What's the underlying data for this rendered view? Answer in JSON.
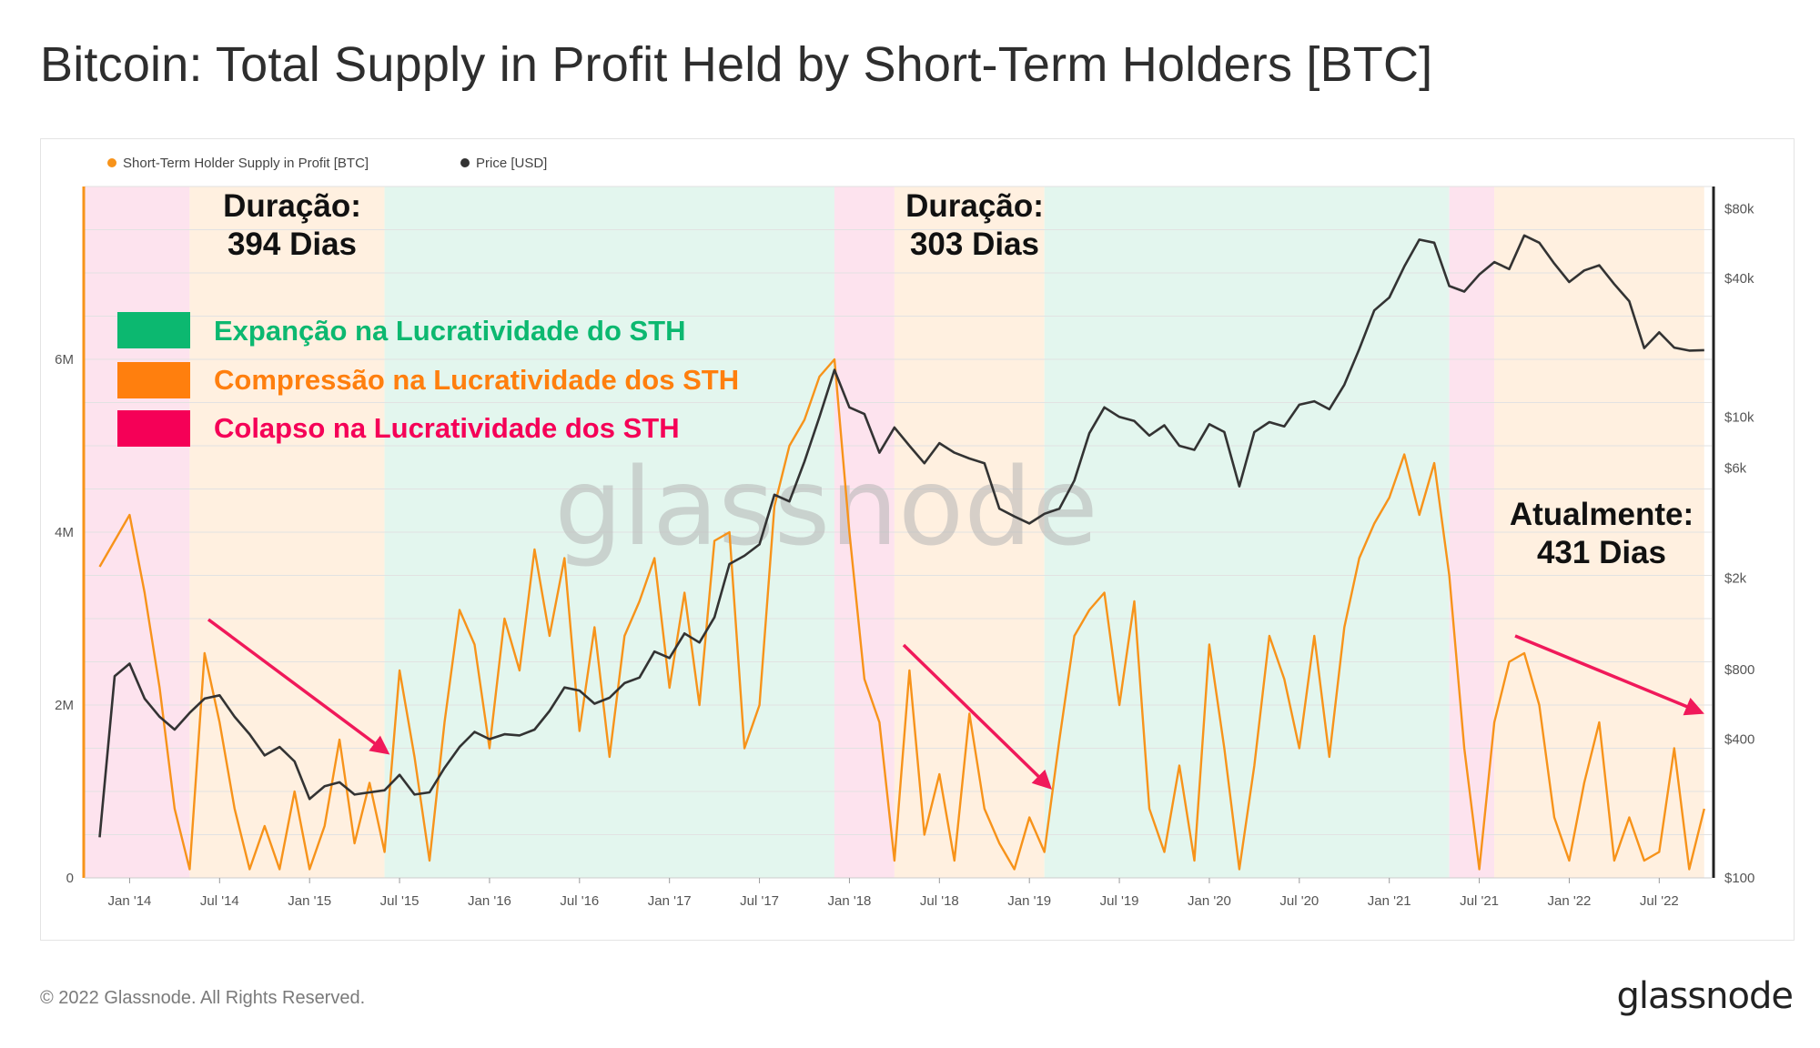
{
  "title": "Bitcoin: Total Supply in Profit Held by Short-Term Holders [BTC]",
  "footer": {
    "copyright": "© 2022 Glassnode. All Rights Reserved.",
    "logo": "glassnode"
  },
  "watermark": "glassnode",
  "legend": [
    {
      "label": "Short-Term Holder Supply in Profit [BTC]",
      "color": "#f7931a"
    },
    {
      "label": "Price [USD]",
      "color": "#333333"
    }
  ],
  "regimes_legend": [
    {
      "label": "Expanção na Lucratividade do STH",
      "color": "#0cb870"
    },
    {
      "label": "Compressão na Lucratividade dos STH",
      "color": "#ff7f0e"
    },
    {
      "label": "Colapso na Lucratividade dos STH",
      "color": "#f50057"
    }
  ],
  "annotations": [
    {
      "line1": "Duração:",
      "line2": "394 Dias"
    },
    {
      "line1": "Duração:",
      "line2": "303 Dias"
    },
    {
      "line1": "Atualmente:",
      "line2": "431 Dias"
    }
  ],
  "chart_data": {
    "type": "line",
    "x_ticks": [
      "Jan '14",
      "Jul '14",
      "Jan '15",
      "Jul '15",
      "Jan '16",
      "Jul '16",
      "Jan '17",
      "Jul '17",
      "Jan '18",
      "Jul '18",
      "Jan '19",
      "Jul '19",
      "Jan '20",
      "Jul '20",
      "Jan '21",
      "Jul '21",
      "Jan '22",
      "Jul '22"
    ],
    "x_range": [
      "2013-10",
      "2022-10"
    ],
    "y_left": {
      "ticks": [
        "0",
        "2M",
        "4M",
        "6M"
      ],
      "range": [
        0,
        8000000
      ],
      "unit": "BTC"
    },
    "y_right": {
      "ticks": [
        "$100",
        "$400",
        "$800",
        "$2k",
        "$6k",
        "$10k",
        "$40k",
        "$80k"
      ],
      "scale": "log",
      "range": [
        100,
        100000
      ]
    },
    "regimes": [
      {
        "type": "collapse",
        "from": "2013-10",
        "to": "2014-05"
      },
      {
        "type": "compression",
        "from": "2014-05",
        "to": "2015-06"
      },
      {
        "type": "expansion",
        "from": "2015-06",
        "to": "2017-12"
      },
      {
        "type": "collapse",
        "from": "2017-12",
        "to": "2018-04"
      },
      {
        "type": "compression",
        "from": "2018-04",
        "to": "2019-02"
      },
      {
        "type": "expansion",
        "from": "2019-02",
        "to": "2021-05"
      },
      {
        "type": "collapse",
        "from": "2021-05",
        "to": "2021-08"
      },
      {
        "type": "compression",
        "from": "2021-08",
        "to": "2022-10"
      }
    ],
    "series": [
      {
        "name": "Short-Term Holder Supply in Profit [BTC]",
        "color": "#f7931a",
        "axis": "left",
        "points": [
          [
            "2013-11",
            3600000
          ],
          [
            "2014-01",
            4200000
          ],
          [
            "2014-02",
            3300000
          ],
          [
            "2014-03",
            2200000
          ],
          [
            "2014-04",
            800000
          ],
          [
            "2014-05",
            100000
          ],
          [
            "2014-06",
            2600000
          ],
          [
            "2014-07",
            1800000
          ],
          [
            "2014-08",
            800000
          ],
          [
            "2014-09",
            100000
          ],
          [
            "2014-10",
            600000
          ],
          [
            "2014-11",
            100000
          ],
          [
            "2014-12",
            1000000
          ],
          [
            "2015-01",
            100000
          ],
          [
            "2015-02",
            600000
          ],
          [
            "2015-03",
            1600000
          ],
          [
            "2015-04",
            400000
          ],
          [
            "2015-05",
            1100000
          ],
          [
            "2015-06",
            300000
          ],
          [
            "2015-07",
            2400000
          ],
          [
            "2015-08",
            1400000
          ],
          [
            "2015-09",
            200000
          ],
          [
            "2015-10",
            1800000
          ],
          [
            "2015-11",
            3100000
          ],
          [
            "2015-12",
            2700000
          ],
          [
            "2016-01",
            1500000
          ],
          [
            "2016-02",
            3000000
          ],
          [
            "2016-03",
            2400000
          ],
          [
            "2016-04",
            3800000
          ],
          [
            "2016-05",
            2800000
          ],
          [
            "2016-06",
            3700000
          ],
          [
            "2016-07",
            1700000
          ],
          [
            "2016-08",
            2900000
          ],
          [
            "2016-09",
            1400000
          ],
          [
            "2016-10",
            2800000
          ],
          [
            "2016-11",
            3200000
          ],
          [
            "2016-12",
            3700000
          ],
          [
            "2017-01",
            2200000
          ],
          [
            "2017-02",
            3300000
          ],
          [
            "2017-03",
            2000000
          ],
          [
            "2017-04",
            3900000
          ],
          [
            "2017-05",
            4000000
          ],
          [
            "2017-06",
            1500000
          ],
          [
            "2017-07",
            2000000
          ],
          [
            "2017-08",
            4300000
          ],
          [
            "2017-09",
            5000000
          ],
          [
            "2017-10",
            5300000
          ],
          [
            "2017-11",
            5800000
          ],
          [
            "2017-12",
            6000000
          ],
          [
            "2018-01",
            4000000
          ],
          [
            "2018-02",
            2300000
          ],
          [
            "2018-03",
            1800000
          ],
          [
            "2018-04",
            200000
          ],
          [
            "2018-05",
            2400000
          ],
          [
            "2018-06",
            500000
          ],
          [
            "2018-07",
            1200000
          ],
          [
            "2018-08",
            200000
          ],
          [
            "2018-09",
            1900000
          ],
          [
            "2018-10",
            800000
          ],
          [
            "2018-11",
            400000
          ],
          [
            "2018-12",
            100000
          ],
          [
            "2019-01",
            700000
          ],
          [
            "2019-02",
            300000
          ],
          [
            "2019-03",
            1600000
          ],
          [
            "2019-04",
            2800000
          ],
          [
            "2019-05",
            3100000
          ],
          [
            "2019-06",
            3300000
          ],
          [
            "2019-07",
            2000000
          ],
          [
            "2019-08",
            3200000
          ],
          [
            "2019-09",
            800000
          ],
          [
            "2019-10",
            300000
          ],
          [
            "2019-11",
            1300000
          ],
          [
            "2019-12",
            200000
          ],
          [
            "2020-01",
            2700000
          ],
          [
            "2020-02",
            1500000
          ],
          [
            "2020-03",
            100000
          ],
          [
            "2020-04",
            1300000
          ],
          [
            "2020-05",
            2800000
          ],
          [
            "2020-06",
            2300000
          ],
          [
            "2020-07",
            1500000
          ],
          [
            "2020-08",
            2800000
          ],
          [
            "2020-09",
            1400000
          ],
          [
            "2020-10",
            2900000
          ],
          [
            "2020-11",
            3700000
          ],
          [
            "2020-12",
            4100000
          ],
          [
            "2021-01",
            4400000
          ],
          [
            "2021-02",
            4900000
          ],
          [
            "2021-03",
            4200000
          ],
          [
            "2021-04",
            4800000
          ],
          [
            "2021-05",
            3500000
          ],
          [
            "2021-06",
            1500000
          ],
          [
            "2021-07",
            100000
          ],
          [
            "2021-08",
            1800000
          ],
          [
            "2021-09",
            2500000
          ],
          [
            "2021-10",
            2600000
          ],
          [
            "2021-11",
            2000000
          ],
          [
            "2021-12",
            700000
          ],
          [
            "2022-01",
            200000
          ],
          [
            "2022-02",
            1100000
          ],
          [
            "2022-03",
            1800000
          ],
          [
            "2022-04",
            200000
          ],
          [
            "2022-05",
            700000
          ],
          [
            "2022-06",
            200000
          ],
          [
            "2022-07",
            300000
          ],
          [
            "2022-08",
            1500000
          ],
          [
            "2022-09",
            100000
          ],
          [
            "2022-10",
            800000
          ]
        ]
      },
      {
        "name": "Price [USD]",
        "color": "#333333",
        "axis": "right",
        "points": [
          [
            "2013-11",
            150
          ],
          [
            "2013-12",
            750
          ],
          [
            "2014-01",
            850
          ],
          [
            "2014-02",
            600
          ],
          [
            "2014-03",
            500
          ],
          [
            "2014-04",
            440
          ],
          [
            "2014-05",
            520
          ],
          [
            "2014-06",
            600
          ],
          [
            "2014-07",
            620
          ],
          [
            "2014-08",
            500
          ],
          [
            "2014-09",
            420
          ],
          [
            "2014-10",
            340
          ],
          [
            "2014-11",
            370
          ],
          [
            "2014-12",
            320
          ],
          [
            "2015-01",
            220
          ],
          [
            "2015-02",
            250
          ],
          [
            "2015-03",
            260
          ],
          [
            "2015-04",
            230
          ],
          [
            "2015-05",
            235
          ],
          [
            "2015-06",
            240
          ],
          [
            "2015-07",
            280
          ],
          [
            "2015-08",
            230
          ],
          [
            "2015-09",
            235
          ],
          [
            "2015-10",
            300
          ],
          [
            "2015-11",
            370
          ],
          [
            "2015-12",
            430
          ],
          [
            "2016-01",
            400
          ],
          [
            "2016-02",
            420
          ],
          [
            "2016-03",
            415
          ],
          [
            "2016-04",
            440
          ],
          [
            "2016-05",
            530
          ],
          [
            "2016-06",
            670
          ],
          [
            "2016-07",
            650
          ],
          [
            "2016-08",
            570
          ],
          [
            "2016-09",
            605
          ],
          [
            "2016-10",
            700
          ],
          [
            "2016-11",
            740
          ],
          [
            "2016-12",
            960
          ],
          [
            "2017-01",
            900
          ],
          [
            "2017-02",
            1150
          ],
          [
            "2017-03",
            1050
          ],
          [
            "2017-04",
            1350
          ],
          [
            "2017-05",
            2300
          ],
          [
            "2017-06",
            2500
          ],
          [
            "2017-07",
            2800
          ],
          [
            "2017-08",
            4600
          ],
          [
            "2017-09",
            4300
          ],
          [
            "2017-10",
            6400
          ],
          [
            "2017-11",
            10000
          ],
          [
            "2017-12",
            16000
          ],
          [
            "2018-01",
            11000
          ],
          [
            "2018-02",
            10300
          ],
          [
            "2018-03",
            7000
          ],
          [
            "2018-04",
            9000
          ],
          [
            "2018-05",
            7500
          ],
          [
            "2018-06",
            6300
          ],
          [
            "2018-07",
            7700
          ],
          [
            "2018-08",
            7000
          ],
          [
            "2018-09",
            6600
          ],
          [
            "2018-10",
            6300
          ],
          [
            "2018-11",
            4000
          ],
          [
            "2018-12",
            3700
          ],
          [
            "2019-01",
            3450
          ],
          [
            "2019-02",
            3800
          ],
          [
            "2019-03",
            4000
          ],
          [
            "2019-04",
            5300
          ],
          [
            "2019-05",
            8500
          ],
          [
            "2019-06",
            11000
          ],
          [
            "2019-07",
            10000
          ],
          [
            "2019-08",
            9600
          ],
          [
            "2019-09",
            8300
          ],
          [
            "2019-10",
            9200
          ],
          [
            "2019-11",
            7500
          ],
          [
            "2019-12",
            7200
          ],
          [
            "2020-01",
            9300
          ],
          [
            "2020-02",
            8600
          ],
          [
            "2020-03",
            5000
          ],
          [
            "2020-04",
            8600
          ],
          [
            "2020-05",
            9500
          ],
          [
            "2020-06",
            9100
          ],
          [
            "2020-07",
            11300
          ],
          [
            "2020-08",
            11700
          ],
          [
            "2020-09",
            10800
          ],
          [
            "2020-10",
            13800
          ],
          [
            "2020-11",
            19700
          ],
          [
            "2020-12",
            29000
          ],
          [
            "2021-01",
            33000
          ],
          [
            "2021-02",
            45000
          ],
          [
            "2021-03",
            58800
          ],
          [
            "2021-04",
            57000
          ],
          [
            "2021-05",
            37000
          ],
          [
            "2021-06",
            35000
          ],
          [
            "2021-07",
            41500
          ],
          [
            "2021-08",
            47000
          ],
          [
            "2021-09",
            43800
          ],
          [
            "2021-10",
            61300
          ],
          [
            "2021-11",
            57000
          ],
          [
            "2021-12",
            46300
          ],
          [
            "2022-01",
            38500
          ],
          [
            "2022-02",
            43200
          ],
          [
            "2022-03",
            45500
          ],
          [
            "2022-04",
            37700
          ],
          [
            "2022-05",
            31800
          ],
          [
            "2022-06",
            19900
          ],
          [
            "2022-07",
            23300
          ],
          [
            "2022-08",
            20000
          ],
          [
            "2022-09",
            19400
          ],
          [
            "2022-10",
            19500
          ]
        ]
      }
    ]
  }
}
